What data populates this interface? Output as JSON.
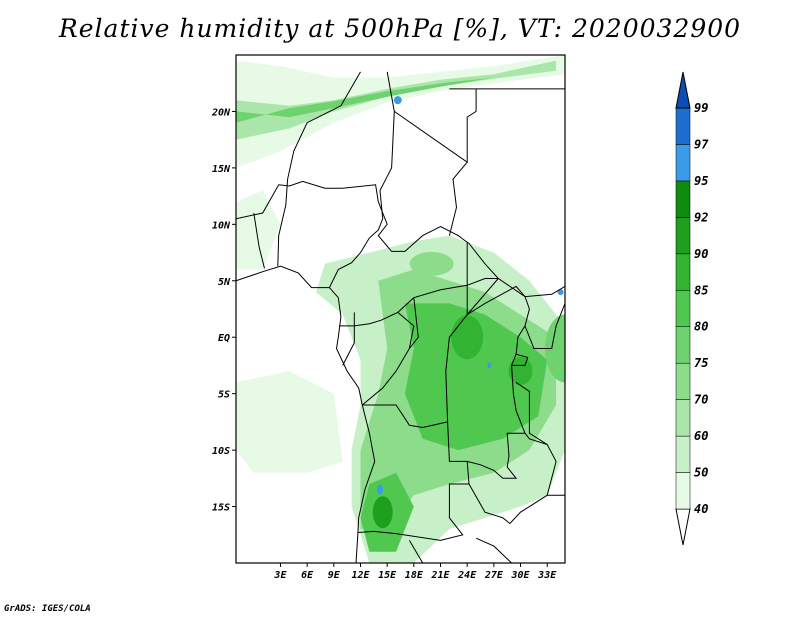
{
  "title": "Relative humidity at 500hPa [%], VT: 2020032900",
  "credit": "GrADS: IGES/COLA",
  "map": {
    "lon_range": [
      -2,
      35
    ],
    "lat_range": [
      -20,
      25
    ],
    "x_ticks": [
      {
        "value": 3,
        "label": "3E"
      },
      {
        "value": 6,
        "label": "6E"
      },
      {
        "value": 9,
        "label": "9E"
      },
      {
        "value": 12,
        "label": "12E"
      },
      {
        "value": 15,
        "label": "15E"
      },
      {
        "value": 18,
        "label": "18E"
      },
      {
        "value": 21,
        "label": "21E"
      },
      {
        "value": 24,
        "label": "24E"
      },
      {
        "value": 27,
        "label": "27E"
      },
      {
        "value": 30,
        "label": "30E"
      },
      {
        "value": 33,
        "label": "33E"
      }
    ],
    "y_ticks": [
      {
        "value": 20,
        "label": "20N"
      },
      {
        "value": 15,
        "label": "15N"
      },
      {
        "value": 10,
        "label": "10N"
      },
      {
        "value": 5,
        "label": "5N"
      },
      {
        "value": 0,
        "label": "EQ"
      },
      {
        "value": -5,
        "label": "5S"
      },
      {
        "value": -10,
        "label": "10S"
      },
      {
        "value": -15,
        "label": "15S"
      }
    ]
  },
  "colorbar": {
    "levels": [
      "40",
      "50",
      "60",
      "70",
      "75",
      "80",
      "85",
      "90",
      "92",
      "95",
      "97",
      "99"
    ],
    "colors": [
      "#ffffff",
      "#e6fae6",
      "#c8f0c8",
      "#aae6aa",
      "#8cdc8c",
      "#6ed26e",
      "#50c850",
      "#32b432",
      "#1ea01e",
      "#0f8c0f",
      "#3c9be6",
      "#1e6ed2",
      "#0a50b4"
    ]
  }
}
